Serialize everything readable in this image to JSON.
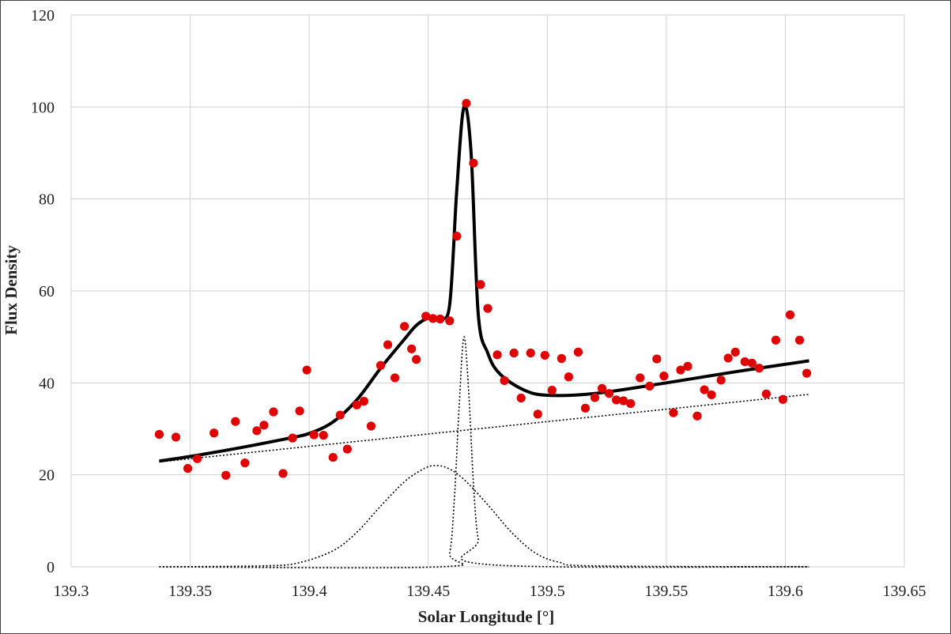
{
  "chart_data": {
    "type": "scatter",
    "title": "",
    "xlabel": "Solar Longitude [°]",
    "ylabel": "Flux Density",
    "xlim": [
      139.3,
      139.65
    ],
    "ylim": [
      0,
      120
    ],
    "x_ticks": [
      139.3,
      139.35,
      139.4,
      139.45,
      139.5,
      139.55,
      139.6,
      139.65
    ],
    "x_tick_labels": [
      "139.3",
      "139.35",
      "139.4",
      "139.45",
      "139.5",
      "139.55",
      "139.6",
      "139.65"
    ],
    "y_ticks": [
      0,
      20,
      40,
      60,
      80,
      100,
      120
    ],
    "y_tick_labels": [
      "0",
      "20",
      "40",
      "60",
      "80",
      "100",
      "120"
    ],
    "grid": true,
    "colors": {
      "points": "#e00000",
      "fit": "#000000",
      "grid": "#d0d0d0"
    },
    "series": [
      {
        "kind": "points",
        "x": [
          139.337,
          139.344,
          139.349,
          139.353,
          139.36,
          139.365,
          139.369,
          139.373,
          139.378,
          139.381,
          139.385,
          139.389,
          139.393,
          139.396,
          139.399,
          139.402,
          139.406,
          139.41,
          139.413,
          139.416,
          139.42,
          139.423,
          139.426,
          139.43,
          139.433,
          139.436,
          139.44,
          139.443,
          139.445,
          139.449,
          139.452,
          139.455,
          139.459,
          139.462,
          139.466,
          139.469,
          139.472,
          139.475,
          139.479,
          139.482,
          139.486,
          139.489,
          139.493,
          139.496,
          139.499,
          139.502,
          139.506,
          139.509,
          139.513,
          139.516,
          139.52,
          139.523,
          139.526,
          139.529,
          139.532,
          139.535,
          139.539,
          139.543,
          139.546,
          139.549,
          139.553,
          139.556,
          139.559,
          139.563,
          139.566,
          139.569,
          139.573,
          139.576,
          139.579,
          139.583,
          139.586,
          139.589,
          139.592,
          139.596,
          139.599,
          139.602,
          139.606,
          139.609
        ],
        "y": [
          28.8,
          28.2,
          21.4,
          23.5,
          29.1,
          19.9,
          31.6,
          22.6,
          29.6,
          30.8,
          33.7,
          20.3,
          28.0,
          33.9,
          42.8,
          28.7,
          28.6,
          23.8,
          33.0,
          25.6,
          35.2,
          36.0,
          30.6,
          43.8,
          48.3,
          41.1,
          52.3,
          47.4,
          45.1,
          54.5,
          54.0,
          53.9,
          53.5,
          71.9,
          100.8,
          87.8,
          61.4,
          56.2,
          46.1,
          40.5,
          46.5,
          36.7,
          46.5,
          33.2,
          46.0,
          38.4,
          45.3,
          41.3,
          46.7,
          34.5,
          36.8,
          38.8,
          37.7,
          36.3,
          36.1,
          35.5,
          41.1,
          39.3,
          45.2,
          41.5,
          33.5,
          42.8,
          43.6,
          32.8,
          38.5,
          37.4,
          40.6,
          45.4,
          46.7,
          44.6,
          44.3,
          43.2,
          37.6,
          49.3,
          36.4,
          54.8,
          49.3,
          42.1
        ]
      },
      {
        "kind": "fit_total",
        "x": [
          139.337,
          139.35,
          139.37,
          139.39,
          139.4,
          139.41,
          139.42,
          139.43,
          139.44,
          139.445,
          139.45,
          139.455,
          139.459,
          139.462,
          139.465,
          139.468,
          139.471,
          139.475,
          139.48,
          139.49,
          139.5,
          139.52,
          139.55,
          139.58,
          139.61
        ],
        "y": [
          23.0,
          24.0,
          25.8,
          27.8,
          29.0,
          31.5,
          36.3,
          43.2,
          49.5,
          52.5,
          54.1,
          54.2,
          57.0,
          82.0,
          100.0,
          90.0,
          55.0,
          46.5,
          42.0,
          38.5,
          37.3,
          37.7,
          40.0,
          42.5,
          44.8
        ]
      },
      {
        "kind": "baseline",
        "x": [
          139.337,
          139.61
        ],
        "y": [
          22.8,
          37.5
        ]
      },
      {
        "kind": "broad_component",
        "x": [
          139.337,
          139.38,
          139.395,
          139.41,
          139.42,
          139.43,
          139.44,
          139.447,
          139.452,
          139.458,
          139.465,
          139.475,
          139.485,
          139.495,
          139.505,
          139.52,
          139.61
        ],
        "y": [
          0,
          0.2,
          0.8,
          3.5,
          7.5,
          13.2,
          18.5,
          21.0,
          22.0,
          21.5,
          19.0,
          13.5,
          7.5,
          3.0,
          1.0,
          0.2,
          0
        ]
      },
      {
        "kind": "narrow_component",
        "x": [
          139.337,
          139.455,
          139.459,
          139.461,
          139.463,
          139.465,
          139.467,
          139.469,
          139.471,
          139.475,
          139.61
        ],
        "y": [
          0,
          0,
          3.0,
          15.0,
          35.0,
          50.0,
          38.0,
          18.0,
          6.0,
          0.5,
          0
        ]
      }
    ]
  }
}
